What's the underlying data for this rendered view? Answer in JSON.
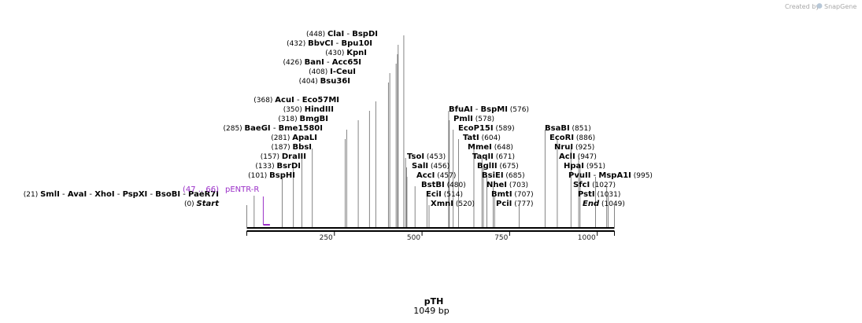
{
  "app": {
    "credit": "Created by",
    "brand": "SnapGene"
  },
  "plasmid": {
    "name": "pTH",
    "length_label": "1049 bp",
    "length": 1049
  },
  "ruler": {
    "ticks": [
      250,
      500,
      750,
      1000
    ]
  },
  "primer": {
    "range": "(47 .. 66)",
    "name": "pENTR-R",
    "start": 47,
    "end": 66,
    "color": "#9b30c8"
  },
  "sites": [
    {
      "row": 0,
      "left": true,
      "pos_label": "(448)",
      "pos": 448,
      "names": [
        "ClaI",
        "BspDI"
      ]
    },
    {
      "row": 1,
      "left": true,
      "pos_label": "(432)",
      "pos": 432,
      "names": [
        "BbvCI",
        "Bpu10I"
      ]
    },
    {
      "row": 2,
      "left": true,
      "pos_label": "(430)",
      "pos": 430,
      "names": [
        "KpnI"
      ]
    },
    {
      "row": 3,
      "left": true,
      "pos_label": "(426)",
      "pos": 426,
      "names": [
        "BanI",
        "Acc65I"
      ]
    },
    {
      "row": 4,
      "left": true,
      "pos_label": "(408)",
      "pos": 408,
      "names": [
        "I-CeuI"
      ]
    },
    {
      "row": 5,
      "left": true,
      "pos_label": "(404)",
      "pos": 404,
      "names": [
        "Bsu36I"
      ]
    },
    {
      "row": 7,
      "left": true,
      "pos_label": "(368)",
      "pos": 368,
      "names": [
        "AcuI",
        "Eco57MI"
      ]
    },
    {
      "row": 8,
      "left": true,
      "pos_label": "(350)",
      "pos": 350,
      "names": [
        "HindIII"
      ]
    },
    {
      "row": 9,
      "left": true,
      "pos_label": "(318)",
      "pos": 318,
      "names": [
        "BmgBI"
      ]
    },
    {
      "row": 10,
      "left": true,
      "pos_label": "(285)",
      "pos": 285,
      "names": [
        "BaeGI",
        "Bme1580I"
      ]
    },
    {
      "row": 11,
      "left": true,
      "pos_label": "(281)",
      "pos": 281,
      "names": [
        "ApaLI"
      ]
    },
    {
      "row": 12,
      "left": true,
      "pos_label": "(187)",
      "pos": 187,
      "names": [
        "BbsI"
      ]
    },
    {
      "row": 13,
      "left": true,
      "pos_label": "(157)",
      "pos": 157,
      "names": [
        "DraIII"
      ]
    },
    {
      "row": 14,
      "left": true,
      "pos_label": "(133)",
      "pos": 133,
      "names": [
        "BsrDI"
      ]
    },
    {
      "row": 15,
      "left": true,
      "pos_label": "(101)",
      "pos": 101,
      "names": [
        "BspHI"
      ]
    },
    {
      "row": 17,
      "left": true,
      "pos_label": "(21)",
      "pos": 21,
      "names": [
        "SmlI",
        "AvaI",
        "XhoI",
        "PspXI",
        "BsoBI",
        "PaeR7I"
      ]
    },
    {
      "row": 18,
      "left": true,
      "pos_label": "(0)",
      "pos": 0,
      "names": [
        "Start"
      ],
      "italic": true
    },
    {
      "row": 8,
      "left": false,
      "pos_label": "(576)",
      "pos": 576,
      "names": [
        "BfuAI",
        "BspMI"
      ]
    },
    {
      "row": 9,
      "left": false,
      "pos_label": "(578)",
      "pos": 578,
      "names": [
        "PmlI"
      ]
    },
    {
      "row": 10,
      "left": false,
      "pos_label": "(589)",
      "pos": 589,
      "names": [
        "EcoP15I"
      ]
    },
    {
      "row": 11,
      "left": false,
      "pos_label": "(604)",
      "pos": 604,
      "names": [
        "TatI"
      ]
    },
    {
      "row": 12,
      "left": false,
      "pos_label": "(648)",
      "pos": 648,
      "names": [
        "MmeI"
      ]
    },
    {
      "row": 13,
      "left": false,
      "pos_label": "(453)",
      "pos": 453,
      "names": [
        "TsoI"
      ]
    },
    {
      "row": 13,
      "left": false,
      "pos_label": "(671)",
      "pos": 671,
      "names": [
        "TaqII"
      ]
    },
    {
      "row": 14,
      "left": false,
      "pos_label": "(456)",
      "pos": 456,
      "names": [
        "SalI"
      ]
    },
    {
      "row": 14,
      "left": false,
      "pos_label": "(675)",
      "pos": 675,
      "names": [
        "BglII"
      ]
    },
    {
      "row": 15,
      "left": false,
      "pos_label": "(457)",
      "pos": 457,
      "names": [
        "AccI"
      ]
    },
    {
      "row": 15,
      "left": false,
      "pos_label": "(685)",
      "pos": 685,
      "names": [
        "BsiEI"
      ]
    },
    {
      "row": 16,
      "left": false,
      "pos_label": "(480)",
      "pos": 480,
      "names": [
        "BstBI"
      ]
    },
    {
      "row": 16,
      "left": false,
      "pos_label": "(703)",
      "pos": 703,
      "names": [
        "NheI"
      ]
    },
    {
      "row": 17,
      "left": false,
      "pos_label": "(707)",
      "pos": 707,
      "names": [
        "BmtI"
      ]
    },
    {
      "row": 17,
      "left": false,
      "pos_label": "(514)",
      "pos": 514,
      "names": [
        "EciI"
      ]
    },
    {
      "row": 18,
      "left": false,
      "pos_label": "(520)",
      "pos": 520,
      "names": [
        "XmnI"
      ]
    },
    {
      "row": 18,
      "left": false,
      "pos_label": "(777)",
      "pos": 777,
      "names": [
        "PciI"
      ]
    },
    {
      "row": 10,
      "left": false,
      "pos_label": "(851)",
      "pos": 851,
      "names": [
        "BsaBI"
      ]
    },
    {
      "row": 11,
      "left": false,
      "pos_label": "(886)",
      "pos": 886,
      "names": [
        "EcoRI"
      ]
    },
    {
      "row": 12,
      "left": false,
      "pos_label": "(925)",
      "pos": 925,
      "names": [
        "NruI"
      ]
    },
    {
      "row": 13,
      "left": false,
      "pos_label": "(947)",
      "pos": 947,
      "names": [
        "AclI"
      ]
    },
    {
      "row": 14,
      "left": false,
      "pos_label": "(951)",
      "pos": 951,
      "names": [
        "HpaI"
      ]
    },
    {
      "row": 15,
      "left": false,
      "pos_label": "(995)",
      "pos": 995,
      "names": [
        "PvuII",
        "MspA1I"
      ]
    },
    {
      "row": 16,
      "left": false,
      "pos_label": "(1027)",
      "pos": 1027,
      "names": [
        "SfcI"
      ]
    },
    {
      "row": 17,
      "left": false,
      "pos_label": "(1031)",
      "pos": 1031,
      "names": [
        "PstI"
      ]
    },
    {
      "row": 18,
      "left": false,
      "pos_label": "(1049)",
      "pos": 1049,
      "names": [
        "End"
      ],
      "italic": true
    }
  ]
}
